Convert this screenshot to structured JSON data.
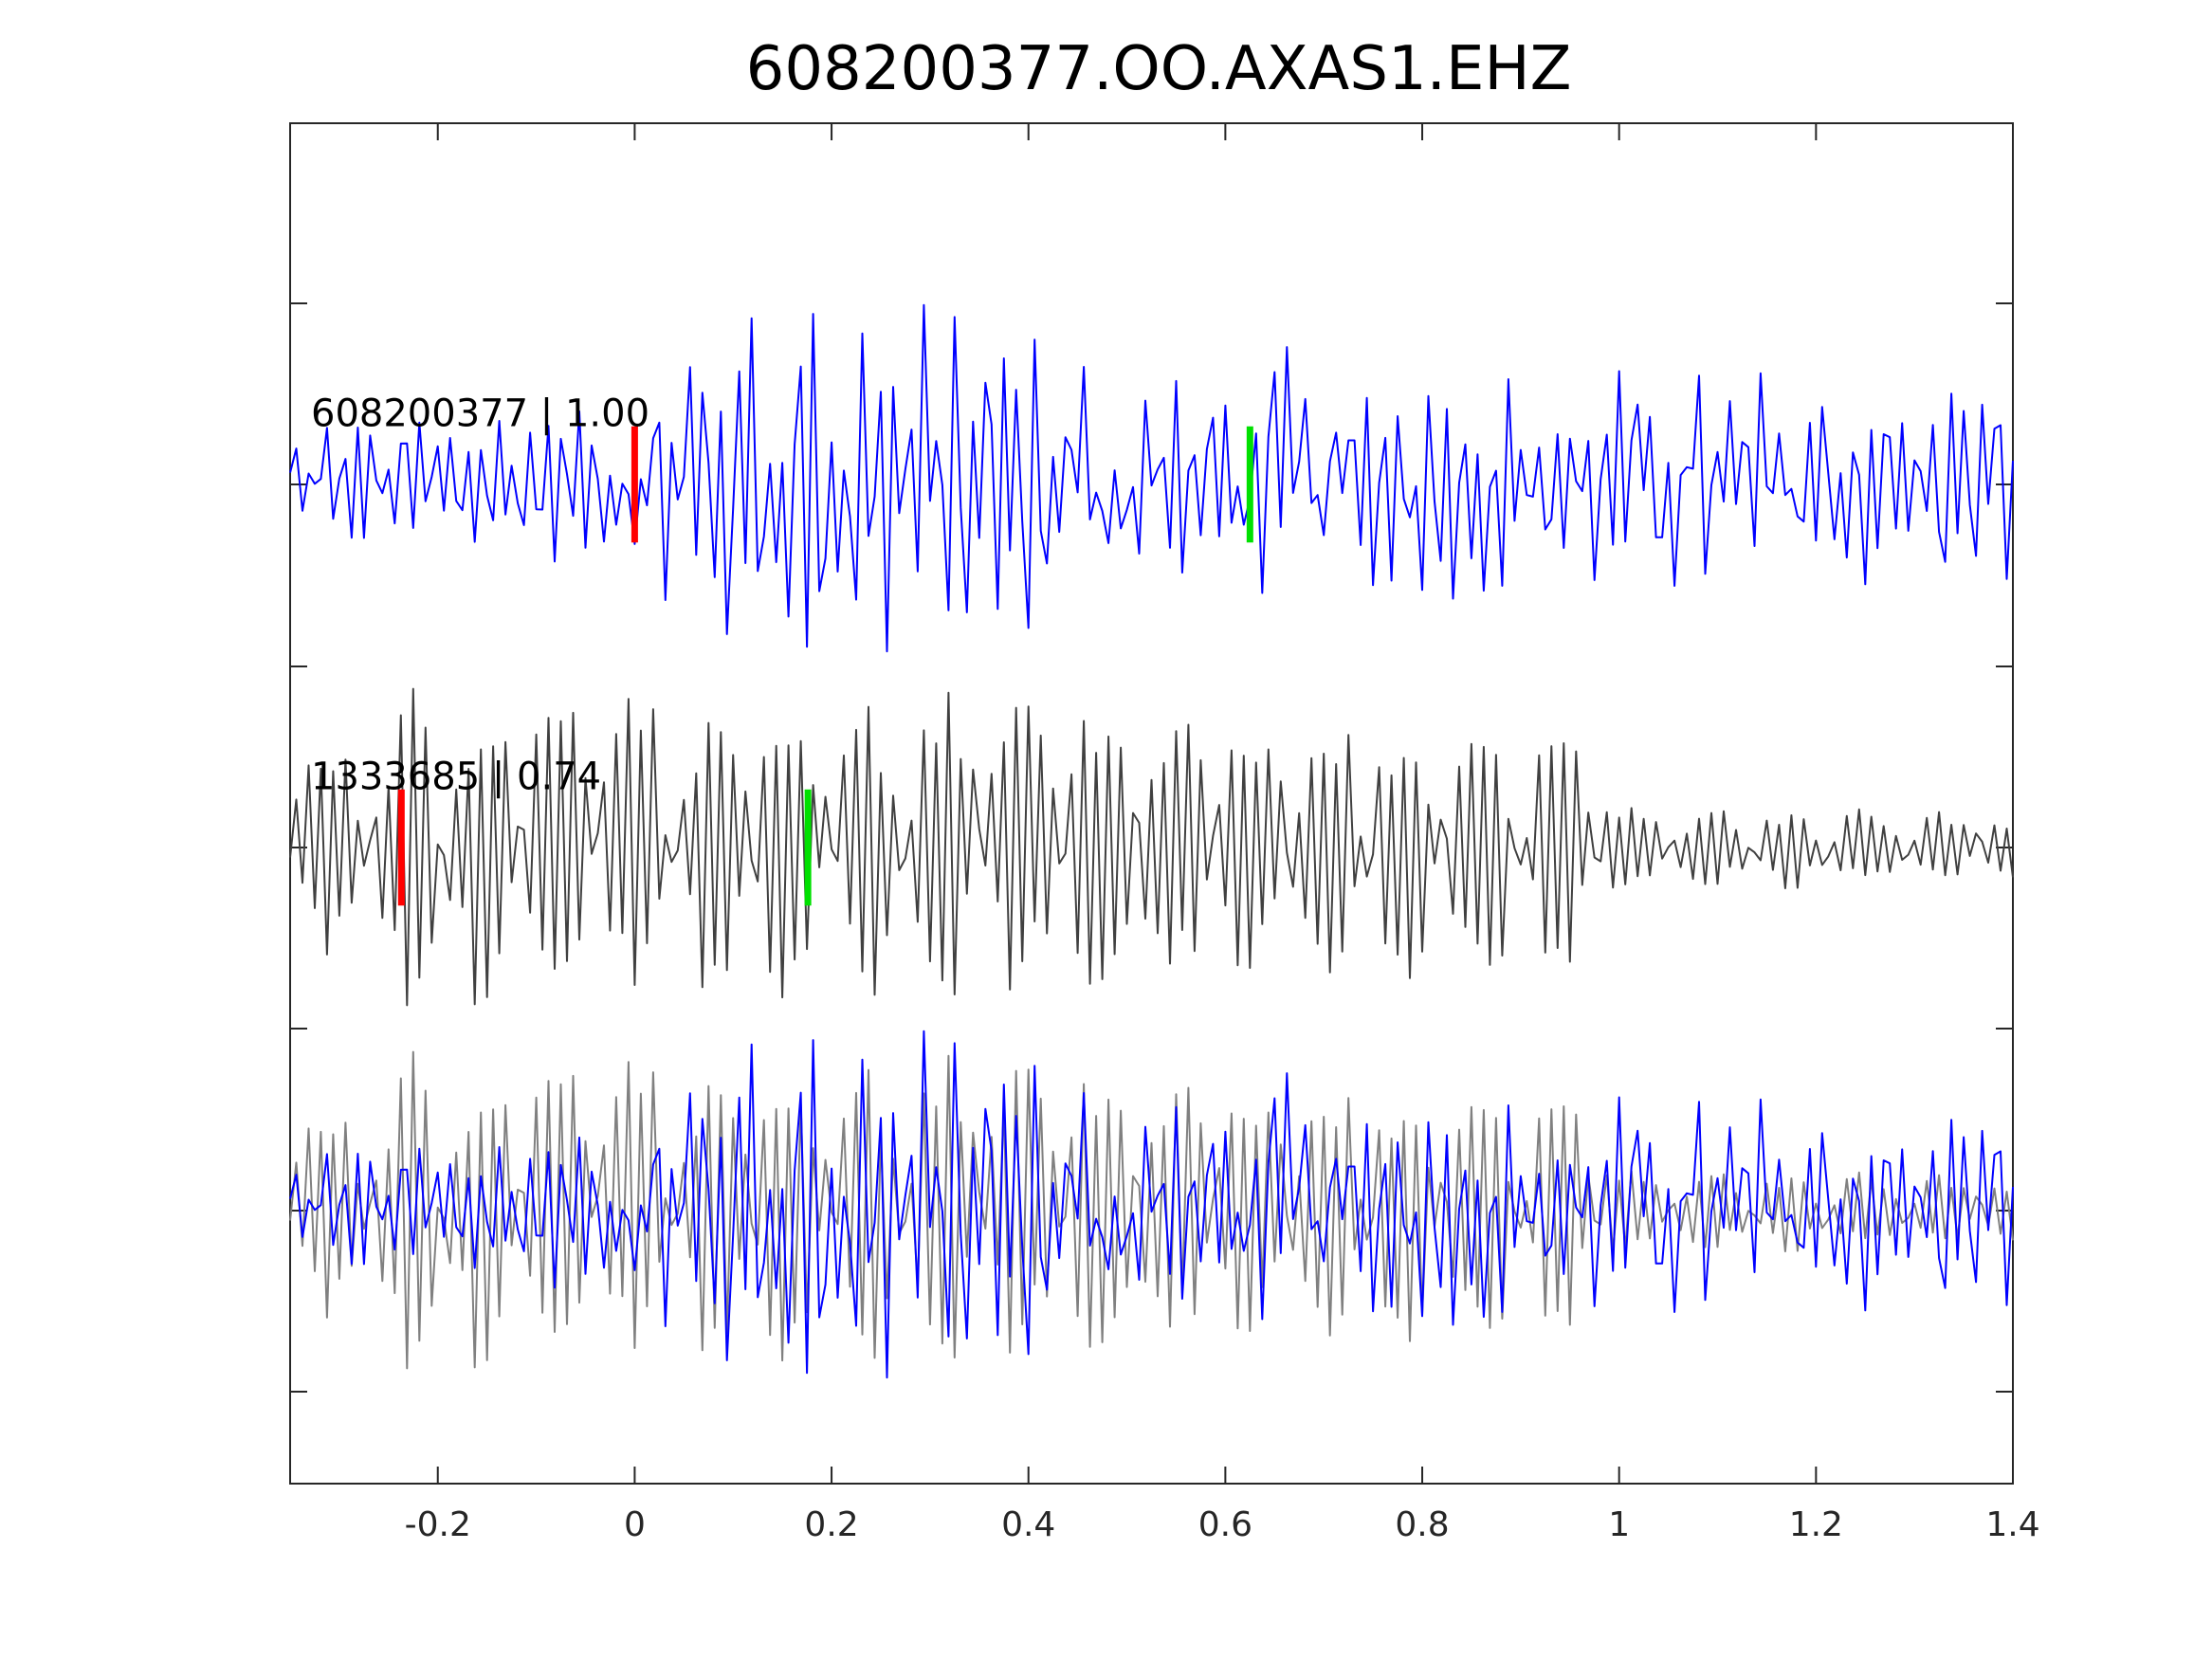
{
  "chart_data": {
    "type": "line",
    "title": "608200377.OO.AXAS1.EHZ",
    "xlim": [
      -0.35,
      1.4
    ],
    "x_ticks": [
      -0.2,
      0,
      0.2,
      0.4,
      0.6,
      0.8,
      1,
      1.2,
      1.4
    ],
    "x_tick_labels": [
      "-0.2",
      "0",
      "0.2",
      "0.4",
      "0.6",
      "0.8",
      "1",
      "1.2",
      "1.4"
    ],
    "y_ticks_shown": 7,
    "grid": false,
    "sample_interval_s": 0.00625,
    "traces": [
      {
        "label": "608200377 | 1.00",
        "color": "#0000ff",
        "offset": 2,
        "markers": [
          {
            "color": "#ff0000",
            "x": 0.0
          },
          {
            "color": "#00e000",
            "x": 0.625
          }
        ]
      },
      {
        "label": "1333685 | 0.74",
        "color": "#404040",
        "offset": 1,
        "markers": [
          {
            "color": "#ff0000",
            "x": -0.237
          },
          {
            "color": "#00e000",
            "x": 0.176
          }
        ]
      }
    ],
    "overlay": {
      "offset": 0,
      "series_colors": [
        "#0000ff",
        "#808080"
      ]
    },
    "colors": {
      "axes": "#262626",
      "trace_a": "#0000ff",
      "trace_b": "#404040",
      "overlay_b": "#808080",
      "pick_p": "#ff0000",
      "pick_s": "#00e000"
    }
  }
}
